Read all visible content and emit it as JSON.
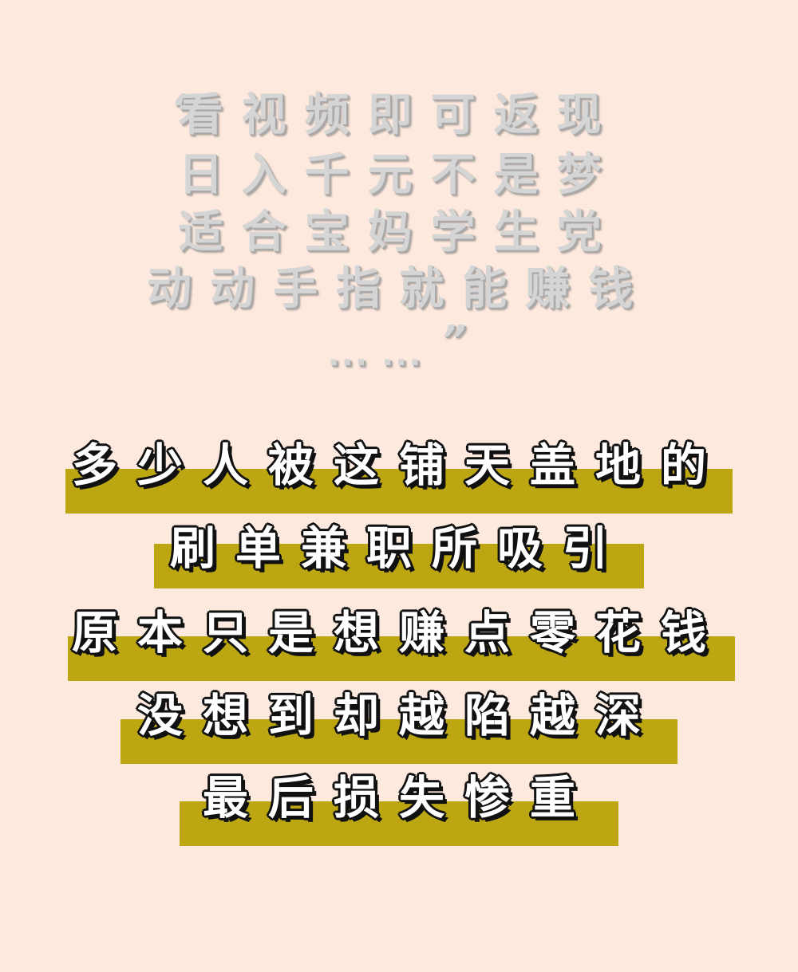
{
  "colors": {
    "background": "#fde9dd",
    "highlight_bar": "#bca712",
    "quote_text": "#d5d5d5",
    "statement_text": "#ffffff",
    "statement_outline": "#111111"
  },
  "quote": {
    "open_mark": "“",
    "lines": [
      "看视频即可返现",
      "日入千元不是梦",
      "适合宝妈学生党",
      "动动手指就能赚钱"
    ],
    "ellipsis": "... ...",
    "close_mark": "”"
  },
  "statement": {
    "lines": [
      "多少人被这铺天盖地的",
      "刷单兼职所吸引",
      "原本只是想赚点零花钱",
      "没想到却越陷越深",
      "最后损失惨重"
    ]
  }
}
